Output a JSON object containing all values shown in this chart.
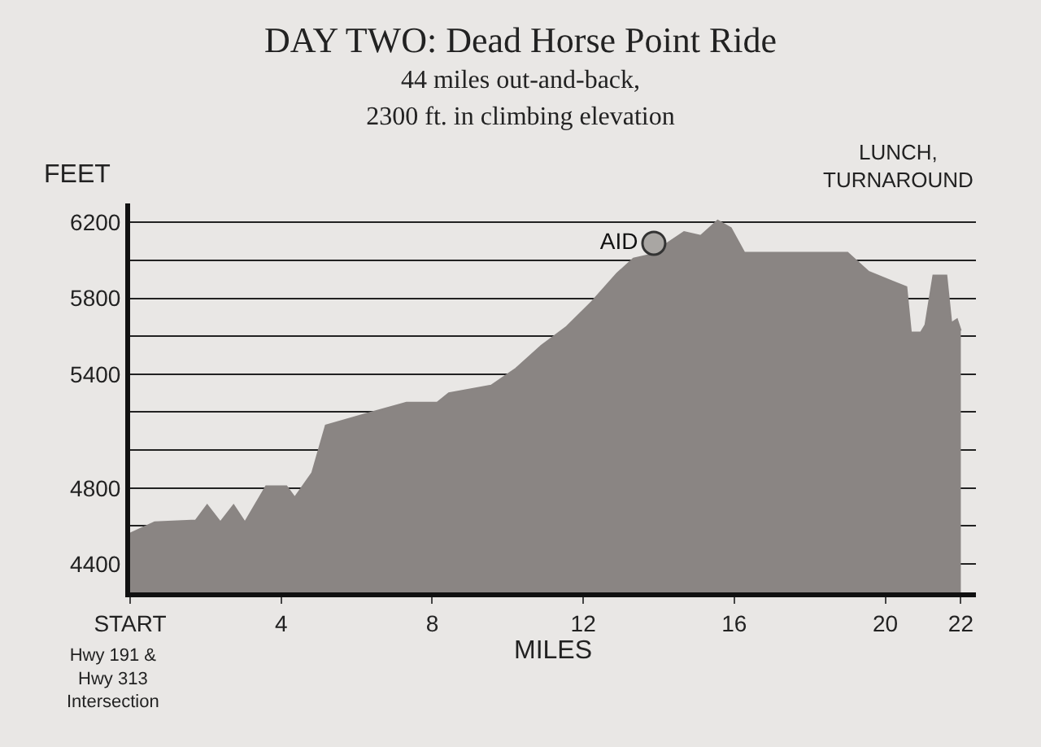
{
  "chart_data": {
    "type": "area",
    "title": "DAY TWO: Dead Horse Point Ride",
    "subtitle": "44 miles out-and-back,\n2300 ft. in climbing elevation",
    "xlabel": "MILES",
    "ylabel": "FEET",
    "annotations": [
      "LUNCH,\nTURNAROUND",
      "Hwy 191 &\nHwy 313\nIntersection"
    ],
    "xlim": [
      0,
      22.4
    ],
    "xticks": [
      {
        "value": 0,
        "label": "START"
      },
      4,
      8,
      12,
      16,
      20,
      22
    ],
    "ylim": [
      4250,
      6300
    ],
    "yticks": [
      4400,
      {
        "value": 4600,
        "label": null
      },
      4800,
      {
        "value": 5000,
        "label": null
      },
      {
        "value": 5200,
        "label": null
      },
      5400,
      {
        "value": 5600,
        "label": null
      },
      5800,
      {
        "value": 6000,
        "label": null
      },
      6200
    ],
    "grid": "y",
    "series": [
      {
        "color": "#8a8583",
        "x": [
          0,
          0.43,
          0.65,
          1.74,
          2.04,
          2.39,
          2.74,
          3.04,
          3.6,
          4.14,
          4.36,
          4.82,
          5.18,
          6.41,
          7.32,
          8.13,
          8.44,
          9.56,
          10.22,
          10.89,
          11.56,
          12.22,
          12.89,
          13.33,
          13.78,
          14.22,
          14.67,
          15.11,
          15.56,
          15.91,
          16.27,
          19.0,
          19.56,
          20.18,
          20.56,
          20.68,
          20.94,
          21.06,
          21.27,
          21.62,
          21.75,
          21.9,
          22.0
        ],
        "values": [
          4560,
          4600,
          4620,
          4630,
          4710,
          4620,
          4710,
          4620,
          4810,
          4810,
          4750,
          4880,
          5130,
          5200,
          5250,
          5250,
          5300,
          5340,
          5430,
          5550,
          5650,
          5780,
          5930,
          6010,
          6030,
          6090,
          6150,
          6130,
          6210,
          6170,
          6040,
          6040,
          5940,
          5890,
          5860,
          5620,
          5620,
          5660,
          5920,
          5920,
          5670,
          5690,
          5630
        ]
      },
      {
        "type": "scatter",
        "name": "AID",
        "color": "#a9a6a3",
        "marker": "circle",
        "x": [
          13.87
        ],
        "values": [
          6090
        ]
      }
    ]
  }
}
